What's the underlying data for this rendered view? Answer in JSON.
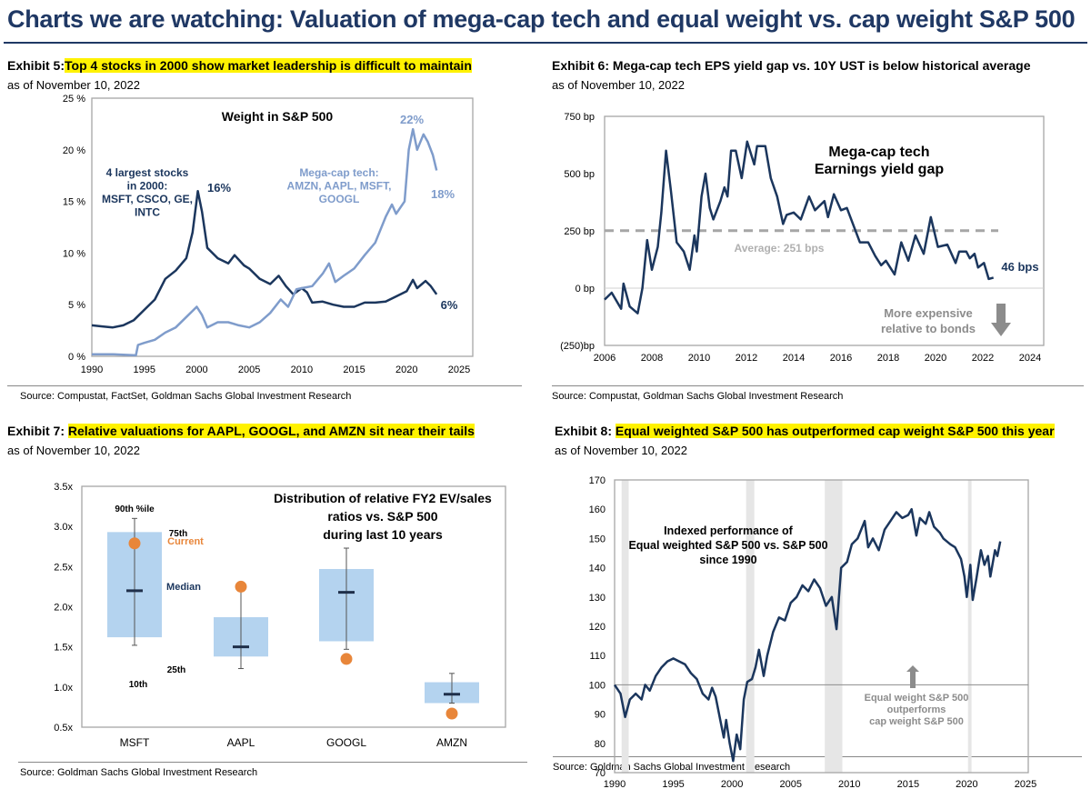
{
  "header": {
    "title": "Charts we are watching: Valuation of mega-cap tech and equal weight vs. cap weight S&P 500"
  },
  "colors": {
    "title": "#1f3864",
    "navy": "#1b365d",
    "light_blue": "#7f9ccb",
    "box_fill": "#b4d3ef",
    "orange": "#e8863a",
    "gray": "#8c8c8c",
    "highlight": "#fff200"
  },
  "panels": [
    {
      "exhibit": "Exhibit 5:",
      "title": "Top 4 stocks in 2000 show market leadership is difficult to maintain",
      "asof": "as of November 10, 2022",
      "source": "Source: Compustat, FactSet, Goldman Sachs Global Investment Research"
    },
    {
      "exhibit": "Exhibit 6:",
      "title": "Mega-cap tech EPS yield gap vs. 10Y UST is below historical average",
      "asof": "as of November 10, 2022",
      "source": "Source: Compustat, Goldman Sachs Global Investment Research"
    },
    {
      "exhibit": "Exhibit 7:",
      "title": "Relative valuations for AAPL, GOOGL, and AMZN sit near their tails",
      "asof": "as of November 10, 2022",
      "source": "Source: Goldman Sachs Global Investment Research"
    },
    {
      "exhibit": "Exhibit 8:",
      "title": "Equal weighted S&P 500 has outperformed cap weight S&P 500 this year",
      "asof": "as of November 10, 2022",
      "source": "Source: Goldman Sachs Global Investment Research"
    }
  ],
  "chart_data": [
    {
      "type": "line",
      "title": "Weight in S&P 500",
      "xlim": [
        1990,
        2025
      ],
      "ylim": [
        0,
        25
      ],
      "x_ticks": [
        "1990",
        "1995",
        "2000",
        "2005",
        "2010",
        "2015",
        "2020",
        "2025"
      ],
      "y_ticks": [
        "0 %",
        "5 %",
        "10 %",
        "15 %",
        "20 %",
        "25 %"
      ],
      "grid": false,
      "series": [
        {
          "name": "4 largest stocks in 2000: MSFT, CSCO, GE, INTC",
          "color": "#1b365d",
          "x": [
            1990,
            1991,
            1992,
            1993,
            1994,
            1995,
            1996,
            1997,
            1998,
            1999,
            1999.6,
            2000.1,
            2000.5,
            2001,
            2002,
            2003,
            2003.6,
            2004.5,
            2005,
            2006,
            2007,
            2007.8,
            2008.5,
            2009.2,
            2010,
            2010.5,
            2011,
            2012,
            2013,
            2014,
            2015,
            2016,
            2017,
            2018,
            2019,
            2020,
            2020.6,
            2021,
            2021.8,
            2022.3,
            2022.85
          ],
          "y": [
            3.0,
            2.9,
            2.8,
            3.0,
            3.5,
            4.5,
            5.5,
            7.5,
            8.3,
            9.5,
            12,
            16,
            14,
            10.5,
            9.5,
            9.0,
            9.8,
            8.8,
            8.5,
            7.5,
            7.0,
            7.8,
            6.8,
            6.0,
            6.6,
            6.2,
            5.2,
            5.3,
            5.0,
            4.8,
            4.8,
            5.2,
            5.2,
            5.3,
            5.8,
            6.3,
            7.4,
            6.6,
            7.3,
            6.8,
            6.0
          ]
        },
        {
          "name": "Mega-cap tech: AMZN, AAPL, MSFT, GOOGL",
          "color": "#7f9ccb",
          "x": [
            1990,
            1992,
            1994.2,
            1994.4,
            1995,
            1996,
            1997,
            1998,
            1999,
            2000,
            2000.5,
            2001,
            2002,
            2003,
            2004,
            2005,
            2006,
            2007,
            2008,
            2008.7,
            2009.5,
            2010,
            2011,
            2012,
            2012.6,
            2013.2,
            2014,
            2015,
            2016,
            2017,
            2018,
            2018.6,
            2019,
            2019.8,
            2020.2,
            2020.6,
            2021,
            2021.6,
            2022,
            2022.5,
            2022.85
          ],
          "y": [
            0.2,
            0.2,
            0.1,
            1.1,
            1.3,
            1.6,
            2.3,
            2.8,
            3.8,
            4.8,
            4.0,
            2.8,
            3.3,
            3.3,
            3.0,
            2.8,
            3.3,
            4.2,
            5.5,
            4.8,
            6.5,
            6.6,
            6.8,
            8.0,
            9.0,
            7.2,
            7.8,
            8.5,
            9.8,
            11,
            13.5,
            14.7,
            13.8,
            15,
            20,
            22,
            20,
            21.5,
            20.8,
            19.5,
            18
          ]
        }
      ],
      "annotations": [
        {
          "lines": [
            "4 largest stocks",
            "in 2000:",
            "MSFT, CSCO, GE,",
            "INTC"
          ]
        },
        {
          "lines": [
            "Mega-cap tech:",
            "AMZN, AAPL, MSFT,",
            "GOOGL"
          ]
        },
        {
          "label": "16%"
        },
        {
          "label": "22%"
        },
        {
          "label": "18%"
        },
        {
          "label": "6%"
        }
      ]
    },
    {
      "type": "line",
      "title": "Mega-cap tech Earnings yield gap",
      "title_lines": [
        "Mega-cap tech",
        "Earnings yield gap"
      ],
      "xlim": [
        2006,
        2024
      ],
      "ylim": [
        -250,
        750
      ],
      "x_ticks": [
        "2006",
        "2008",
        "2010",
        "2012",
        "2014",
        "2016",
        "2018",
        "2020",
        "2022",
        "2024"
      ],
      "y_ticks": [
        "(250)bp",
        "0 bp",
        "250 bp",
        "500 bp",
        "750 bp"
      ],
      "grid": false,
      "average": {
        "value": 251,
        "label": "Average: 251 bps"
      },
      "last_label": "46 bps",
      "note_lines": [
        "More expensive",
        "relative to bonds"
      ],
      "series": [
        {
          "color": "#1b365d",
          "x": [
            2006.0,
            2006.3,
            2006.7,
            2006.8,
            2007.06,
            2007.4,
            2007.6,
            2007.8,
            2008.0,
            2008.25,
            2008.4,
            2008.6,
            2008.8,
            2009.05,
            2009.35,
            2009.6,
            2009.8,
            2009.9,
            2010.1,
            2010.27,
            2010.45,
            2010.6,
            2010.9,
            2011.07,
            2011.2,
            2011.35,
            2011.55,
            2011.8,
            2012.03,
            2012.33,
            2012.45,
            2012.8,
            2013.03,
            2013.3,
            2013.55,
            2013.7,
            2014.0,
            2014.3,
            2014.65,
            2014.9,
            2015.3,
            2015.45,
            2015.7,
            2016.0,
            2016.25,
            2016.8,
            2017.15,
            2017.45,
            2017.7,
            2017.9,
            2018.27,
            2018.55,
            2018.85,
            2019.15,
            2019.5,
            2019.8,
            2020.1,
            2020.5,
            2020.85,
            2021.0,
            2021.3,
            2021.45,
            2021.65,
            2021.8,
            2022.05,
            2022.25,
            2022.45
          ],
          "y": [
            -50,
            -20,
            -90,
            20,
            -80,
            -110,
            0,
            210,
            80,
            180,
            330,
            600,
            430,
            200,
            160,
            80,
            230,
            160,
            400,
            500,
            350,
            300,
            380,
            440,
            400,
            600,
            600,
            480,
            640,
            540,
            620,
            620,
            480,
            400,
            280,
            320,
            330,
            300,
            400,
            340,
            380,
            310,
            410,
            340,
            350,
            200,
            200,
            140,
            100,
            120,
            60,
            200,
            120,
            230,
            150,
            310,
            180,
            190,
            110,
            160,
            160,
            130,
            150,
            90,
            110,
            40,
            46
          ]
        }
      ]
    },
    {
      "type": "box",
      "title": "Distribution of relative FY2 EV/sales ratios vs. S&P 500 during last 10 years",
      "title_lines": [
        "Distribution of relative FY2 EV/sales",
        "ratios vs. S&P 500",
        "during last 10 years"
      ],
      "ylim": [
        0.5,
        3.5
      ],
      "y_ticks": [
        "0.5x",
        "1.0x",
        "1.5x",
        "2.0x",
        "2.5x",
        "3.0x",
        "3.5x"
      ],
      "categories": [
        "MSFT",
        "AAPL",
        "GOOGL",
        "AMZN"
      ],
      "p10": [
        1.52,
        1.23,
        1.47,
        0.8
      ],
      "p25": [
        1.62,
        1.38,
        1.57,
        0.8
      ],
      "median": [
        2.2,
        1.5,
        2.18,
        0.91
      ],
      "p75": [
        2.93,
        1.87,
        2.47,
        1.06
      ],
      "p90": [
        3.1,
        2.25,
        2.73,
        1.17
      ],
      "current": [
        2.79,
        2.25,
        1.35,
        0.67
      ],
      "legend_labels": {
        "p90": "90th %ile",
        "p75": "75th",
        "current": "Current",
        "median": "Median",
        "p25": "25th",
        "p10": "10th"
      }
    },
    {
      "type": "line",
      "title": "Indexed performance of Equal weighted S&P 500 vs. S&P 500 since 1990",
      "title_lines": [
        "Indexed performance of",
        "Equal weighted S&P 500 vs. S&P 500",
        "since 1990"
      ],
      "xlim": [
        1990,
        2025
      ],
      "ylim": [
        70,
        170
      ],
      "x_ticks": [
        "1990",
        "1995",
        "2000",
        "2005",
        "2010",
        "2015",
        "2020",
        "2025"
      ],
      "y_ticks": [
        "70",
        "80",
        "90",
        "100",
        "110",
        "120",
        "130",
        "140",
        "150",
        "160",
        "170"
      ],
      "grid": false,
      "reference_line": 100,
      "shaded_periods": [
        [
          1990.6,
          1991.2
        ],
        [
          2001.2,
          2001.9
        ],
        [
          2007.9,
          2009.4
        ],
        [
          2020.1,
          2020.4
        ]
      ],
      "note_lines": [
        "Equal weight S&P 500",
        "outperforms",
        "cap weight S&P 500"
      ],
      "series": [
        {
          "color": "#1b365d",
          "x": [
            1990,
            1990.5,
            1990.9,
            1991.3,
            1991.8,
            1992.3,
            1992.6,
            1993,
            1993.5,
            1994,
            1994.5,
            1995,
            1995.5,
            1996,
            1996.5,
            1997,
            1997.5,
            1998,
            1998.3,
            1998.6,
            1999,
            1999.3,
            1999.5,
            1999.8,
            2000.1,
            2000.4,
            2000.7,
            2001,
            2001.3,
            2001.7,
            2002,
            2002.3,
            2002.7,
            2003,
            2003.5,
            2004,
            2004.5,
            2005,
            2005.5,
            2006,
            2006.5,
            2007,
            2007.5,
            2008,
            2008.5,
            2008.9,
            2009.3,
            2009.8,
            2010.2,
            2010.7,
            2011.3,
            2011.6,
            2012,
            2012.5,
            2013,
            2013.5,
            2014,
            2014.5,
            2015,
            2015.3,
            2015.7,
            2016,
            2016.5,
            2016.8,
            2017.2,
            2017.7,
            2018,
            2018.6,
            2019,
            2019.5,
            2019.8,
            2020,
            2020.3,
            2020.5,
            2020.8,
            2021.2,
            2021.5,
            2021.8,
            2022,
            2022.4,
            2022.6,
            2022.85
          ],
          "y": [
            100,
            97,
            89,
            95,
            97,
            95,
            100,
            98,
            103,
            106,
            108,
            109,
            108,
            107,
            104,
            102,
            97,
            95,
            99,
            96,
            88,
            82,
            88,
            80,
            74,
            83,
            78,
            95,
            101,
            102,
            106,
            112,
            103,
            110,
            118,
            123,
            122,
            128,
            130,
            134,
            132,
            136,
            133,
            127,
            130,
            119,
            140,
            142,
            148,
            150,
            156,
            147,
            150,
            146,
            153,
            156,
            159,
            157,
            158,
            160,
            151,
            157,
            155,
            159,
            154,
            152,
            150,
            148,
            147,
            143,
            137,
            130,
            141,
            129,
            136,
            146,
            141,
            144,
            137,
            146,
            144,
            149
          ]
        }
      ]
    }
  ]
}
